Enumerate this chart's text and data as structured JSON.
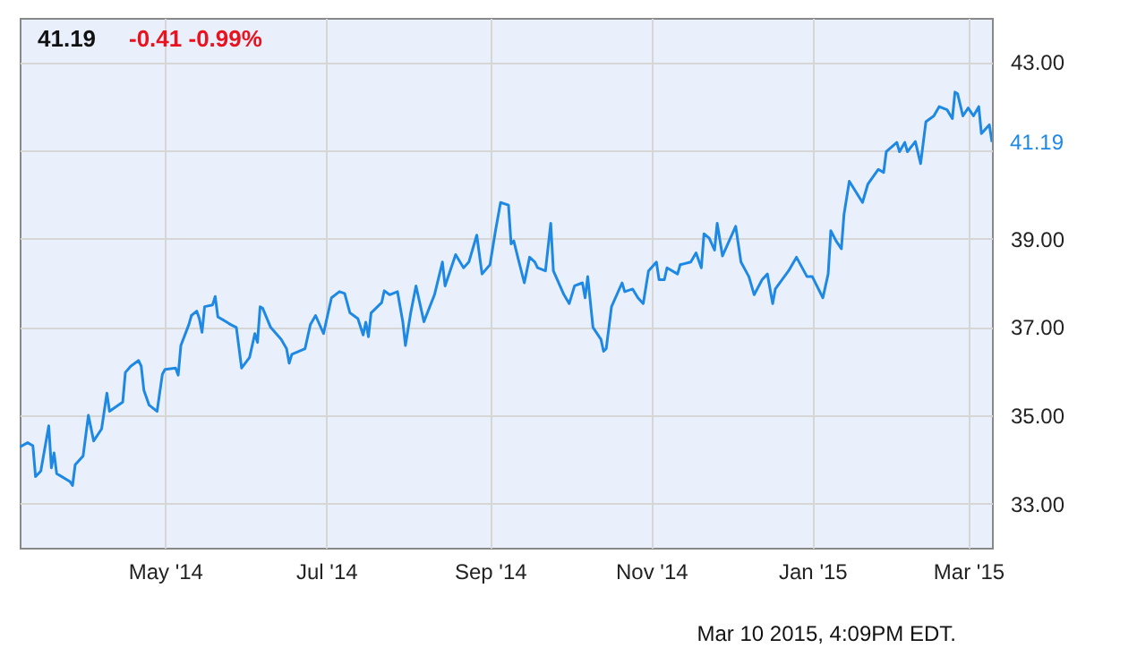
{
  "chart_data": {
    "type": "line",
    "title": "41.19",
    "subtitle": "-0.41  -0.99%",
    "x": [
      "2014-03-07",
      "2014-03-10",
      "2014-03-12",
      "2014-03-13",
      "2014-03-15",
      "2014-03-18",
      "2014-03-19",
      "2014-03-20",
      "2014-03-21",
      "2014-03-26",
      "2014-03-27",
      "2014-03-28",
      "2014-03-31",
      "2014-04-02",
      "2014-04-04",
      "2014-04-07",
      "2014-04-09",
      "2014-04-10",
      "2014-04-15",
      "2014-04-16",
      "2014-04-18",
      "2014-04-21",
      "2014-04-22",
      "2014-04-23",
      "2014-04-25",
      "2014-04-28",
      "2014-04-30",
      "2014-05-01",
      "2014-05-05",
      "2014-05-06",
      "2014-05-07",
      "2014-05-10",
      "2014-05-11",
      "2014-05-13",
      "2014-05-14",
      "2014-05-15",
      "2014-05-16",
      "2014-05-19",
      "2014-05-20",
      "2014-05-21",
      "2014-05-26",
      "2014-05-28",
      "2014-05-30",
      "2014-06-02",
      "2014-06-04",
      "2014-06-05",
      "2014-06-06",
      "2014-06-07",
      "2014-06-10",
      "2014-06-14",
      "2014-06-16",
      "2014-06-17",
      "2014-06-18",
      "2014-06-23",
      "2014-06-25",
      "2014-06-27",
      "2014-06-30",
      "2014-07-03",
      "2014-07-06",
      "2014-07-08",
      "2014-07-10",
      "2014-07-13",
      "2014-07-15",
      "2014-07-16",
      "2014-07-17",
      "2014-07-18",
      "2014-07-22",
      "2014-07-23",
      "2014-07-25",
      "2014-07-28",
      "2014-07-30",
      "2014-07-31",
      "2014-08-02",
      "2014-08-04",
      "2014-08-07",
      "2014-08-11",
      "2014-08-14",
      "2014-08-15",
      "2014-08-19",
      "2014-08-22",
      "2014-08-24",
      "2014-08-27",
      "2014-08-29",
      "2014-09-01",
      "2014-09-03",
      "2014-09-05",
      "2014-09-08",
      "2014-09-09",
      "2014-09-10",
      "2014-09-12",
      "2014-09-14",
      "2014-09-16",
      "2014-09-18",
      "2014-09-19",
      "2014-09-22",
      "2014-09-24",
      "2014-09-25",
      "2014-09-29",
      "2014-10-01",
      "2014-10-03",
      "2014-10-06",
      "2014-10-07",
      "2014-10-08",
      "2014-10-10",
      "2014-10-13",
      "2014-10-14",
      "2014-10-15",
      "2014-10-17",
      "2014-10-21",
      "2014-10-22",
      "2014-10-25",
      "2014-10-27",
      "2014-10-29",
      "2014-10-31",
      "2014-11-03",
      "2014-11-04",
      "2014-11-06",
      "2014-11-07",
      "2014-11-11",
      "2014-11-12",
      "2014-11-16",
      "2014-11-18",
      "2014-11-20",
      "2014-11-21",
      "2014-11-23",
      "2014-11-25",
      "2014-11-26",
      "2014-11-28",
      "2014-12-03",
      "2014-12-05",
      "2014-12-08",
      "2014-12-10",
      "2014-12-13",
      "2014-12-15",
      "2014-12-17",
      "2014-12-18",
      "2014-12-23",
      "2014-12-26",
      "2014-12-30",
      "2015-01-01",
      "2015-01-05",
      "2015-01-07",
      "2015-01-08",
      "2015-01-10",
      "2015-01-12",
      "2015-01-13",
      "2015-01-15",
      "2015-01-20",
      "2015-01-22",
      "2015-01-26",
      "2015-01-28",
      "2015-01-29",
      "2015-02-02",
      "2015-02-03",
      "2015-02-05",
      "2015-02-06",
      "2015-02-09",
      "2015-02-11",
      "2015-02-13",
      "2015-02-16",
      "2015-02-18",
      "2015-02-21",
      "2015-02-23",
      "2015-02-24",
      "2015-02-25",
      "2015-02-27",
      "2015-03-01",
      "2015-03-03",
      "2015-03-05",
      "2015-03-06",
      "2015-03-09",
      "2015-03-10"
    ],
    "series": [
      {
        "color": "#1e88e5",
        "values": [
          34.28,
          34.38,
          34.31,
          33.61,
          33.74,
          34.76,
          33.81,
          34.15,
          33.68,
          33.5,
          33.41,
          33.88,
          34.08,
          35.0,
          34.42,
          34.69,
          35.5,
          35.09,
          35.3,
          35.97,
          36.11,
          36.24,
          36.11,
          35.57,
          35.23,
          35.09,
          35.93,
          36.04,
          36.07,
          35.91,
          36.58,
          37.05,
          37.26,
          37.36,
          37.19,
          36.88,
          37.46,
          37.5,
          37.69,
          37.23,
          37.05,
          36.99,
          36.07,
          36.31,
          36.85,
          36.65,
          37.46,
          37.42,
          36.99,
          36.72,
          36.51,
          36.18,
          36.38,
          36.51,
          37.05,
          37.26,
          36.85,
          37.66,
          37.8,
          37.76,
          37.32,
          37.19,
          36.82,
          37.11,
          36.78,
          37.32,
          37.55,
          37.82,
          37.73,
          37.8,
          37.12,
          36.58,
          37.32,
          37.93,
          37.12,
          37.73,
          38.47,
          37.93,
          38.64,
          38.34,
          38.47,
          39.08,
          38.2,
          38.41,
          39.15,
          39.82,
          39.76,
          38.88,
          38.95,
          38.47,
          38.0,
          38.58,
          38.47,
          38.34,
          38.27,
          39.35,
          38.27,
          37.73,
          37.53,
          37.93,
          38.0,
          37.66,
          38.14,
          36.99,
          36.72,
          36.45,
          36.51,
          37.46,
          38.0,
          37.8,
          37.86,
          37.66,
          37.53,
          38.27,
          38.47,
          38.07,
          38.07,
          38.34,
          38.2,
          38.41,
          38.47,
          38.68,
          38.34,
          39.11,
          39.01,
          38.74,
          39.35,
          38.61,
          39.28,
          38.47,
          38.14,
          37.73,
          38.07,
          38.2,
          37.53,
          37.86,
          38.27,
          38.58,
          38.14,
          38.14,
          37.66,
          38.2,
          39.18,
          38.95,
          38.77,
          39.55,
          40.3,
          39.82,
          40.23,
          40.57,
          40.5,
          40.97,
          41.18,
          40.97,
          41.18,
          40.97,
          41.2,
          40.7,
          41.65,
          41.78,
          41.99,
          41.92,
          41.72,
          42.32,
          42.28,
          41.78,
          41.96,
          41.78,
          41.99,
          41.38,
          41.58,
          41.19
        ]
      }
    ],
    "xlim": [
      "2014-03-07",
      "2015-03-10"
    ],
    "xticks": [
      {
        "value": "2014-05-01",
        "label": "May '14"
      },
      {
        "value": "2014-07-01",
        "label": "Jul '14"
      },
      {
        "value": "2014-09-01",
        "label": "Sep '14"
      },
      {
        "value": "2014-11-01",
        "label": "Nov '14"
      },
      {
        "value": "2015-01-01",
        "label": "Jan '15"
      },
      {
        "value": "2015-03-01",
        "label": "Mar '15"
      }
    ],
    "ylim": [
      32,
      44
    ],
    "yticks": [
      {
        "value": 33,
        "label": "33.00"
      },
      {
        "value": 35,
        "label": "35.00"
      },
      {
        "value": 37,
        "label": "37.00"
      },
      {
        "value": 39,
        "label": "39.00"
      },
      {
        "value": 41,
        "label": null
      },
      {
        "value": 43,
        "label": "43.00"
      }
    ],
    "grid": true,
    "annotations": [
      {
        "text": "41.19",
        "x": "2015-03-10",
        "y": 41.19
      },
      "Mar 10 2015, 4:09PM EDT."
    ]
  }
}
